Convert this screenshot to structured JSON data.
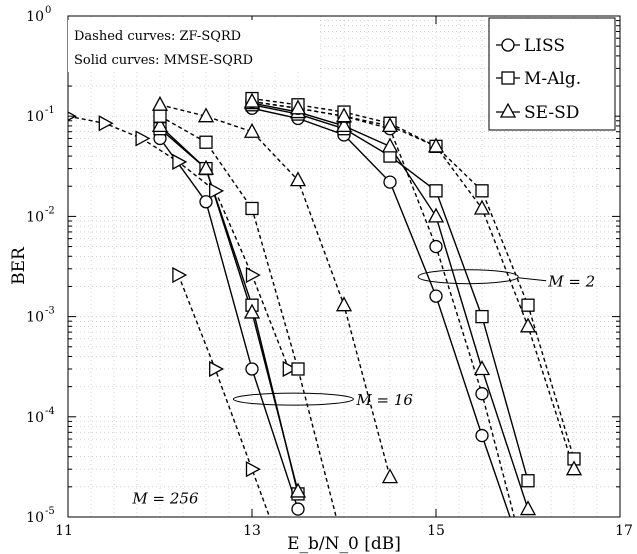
{
  "chart_data": {
    "type": "line",
    "xlabel": "E_b/N_0 [dB]",
    "ylabel": "BER",
    "xlim": [
      11,
      17
    ],
    "ylim": [
      1e-05,
      1
    ],
    "yscale": "log",
    "grid": true,
    "x_ticks": [
      11,
      13,
      15,
      17
    ],
    "y_tick_exponents": [
      0,
      -1,
      -2,
      -3,
      -4,
      -5
    ],
    "annotations": [
      "Dashed curves: ZF-SQRD",
      "Solid curves: MMSE-SQRD"
    ],
    "group_labels": [
      {
        "text": "M = 2",
        "ellipse": {
          "x": 15.35,
          "y": 0.0025
        }
      },
      {
        "text": "M = 16",
        "ellipse": {
          "x": 13.45,
          "y": 0.00015
        }
      },
      {
        "text": "M = 256",
        "ellipse": null
      }
    ],
    "legend": {
      "position": "top-right",
      "entries": [
        {
          "label": "LISS",
          "marker": "circle"
        },
        {
          "label": "M-Alg.",
          "marker": "square"
        },
        {
          "label": "SE-SD",
          "marker": "triangle-up"
        }
      ]
    },
    "series": [
      {
        "group": "M=256",
        "style": "dashed",
        "marker": "triangle-right",
        "x": [
          11,
          11.4,
          11.8,
          12.2,
          12.6,
          13.0,
          13.4
        ],
        "y": [
          0.1,
          0.085,
          0.06,
          0.035,
          0.018,
          0.0026,
          0.0003
        ]
      },
      {
        "group": "M=256",
        "style": "dashed",
        "marker": "triangle-right",
        "x": [
          12.2,
          12.6,
          13.0,
          13.4
        ],
        "y": [
          0.0026,
          0.0003,
          3e-05,
          3e-06
        ]
      },
      {
        "group": "M=16",
        "style": "solid",
        "marker": "circle",
        "x": [
          12,
          12.5,
          13,
          13.5
        ],
        "y": [
          0.06,
          0.014,
          0.0003,
          1.2e-05
        ]
      },
      {
        "group": "M=16",
        "style": "solid",
        "marker": "square",
        "x": [
          12,
          12.5,
          13,
          13.5
        ],
        "y": [
          0.075,
          0.03,
          0.0013,
          1.7e-05
        ]
      },
      {
        "group": "M=16",
        "style": "solid",
        "marker": "triangle-up",
        "x": [
          12,
          12.5,
          13,
          13.5
        ],
        "y": [
          0.08,
          0.03,
          0.0011,
          1.8e-05
        ]
      },
      {
        "group": "M=16",
        "style": "dashed",
        "marker": "triangle-up",
        "x": [
          12,
          12.5,
          13,
          13.5,
          14,
          14.5
        ],
        "y": [
          0.13,
          0.1,
          0.07,
          0.023,
          0.0013,
          2.5e-05
        ]
      },
      {
        "group": "M=16",
        "style": "dashed",
        "marker": "square",
        "x": [
          12,
          12.5,
          13,
          13.5,
          14
        ],
        "y": [
          0.1,
          0.055,
          0.012,
          0.0003,
          5e-06
        ]
      },
      {
        "group": "M=2",
        "style": "solid",
        "marker": "circle",
        "x": [
          13,
          13.5,
          14,
          14.5,
          15,
          15.5,
          16
        ],
        "y": [
          0.12,
          0.095,
          0.065,
          0.022,
          0.0016,
          6.5e-05,
          3e-06
        ]
      },
      {
        "group": "M=2",
        "style": "solid",
        "marker": "square",
        "x": [
          13,
          13.5,
          14,
          14.5,
          15,
          15.5,
          16
        ],
        "y": [
          0.13,
          0.105,
          0.075,
          0.04,
          0.018,
          0.001,
          2.3e-05
        ]
      },
      {
        "group": "M=2",
        "style": "solid",
        "marker": "triangle-up",
        "x": [
          13,
          13.5,
          14,
          14.5,
          15,
          15.5,
          16
        ],
        "y": [
          0.135,
          0.11,
          0.08,
          0.05,
          0.01,
          0.0003,
          1.2e-05
        ]
      },
      {
        "group": "M=2",
        "style": "dashed",
        "marker": "circle",
        "x": [
          13,
          13.5,
          14,
          14.5,
          15,
          15.5,
          16
        ],
        "y": [
          0.14,
          0.12,
          0.1,
          0.075,
          0.005,
          0.00017,
          3e-06
        ]
      },
      {
        "group": "M=2",
        "style": "dashed",
        "marker": "square",
        "x": [
          13,
          13.5,
          14,
          14.5,
          15,
          15.5,
          16,
          16.5
        ],
        "y": [
          0.15,
          0.13,
          0.11,
          0.085,
          0.05,
          0.018,
          0.0013,
          3.8e-05
        ]
      },
      {
        "group": "M=2",
        "style": "dashed",
        "marker": "triangle-up",
        "x": [
          13,
          13.5,
          14,
          14.5,
          15,
          15.5,
          16,
          16.5
        ],
        "y": [
          0.14,
          0.12,
          0.1,
          0.08,
          0.05,
          0.012,
          0.0008,
          3e-05
        ]
      }
    ]
  }
}
